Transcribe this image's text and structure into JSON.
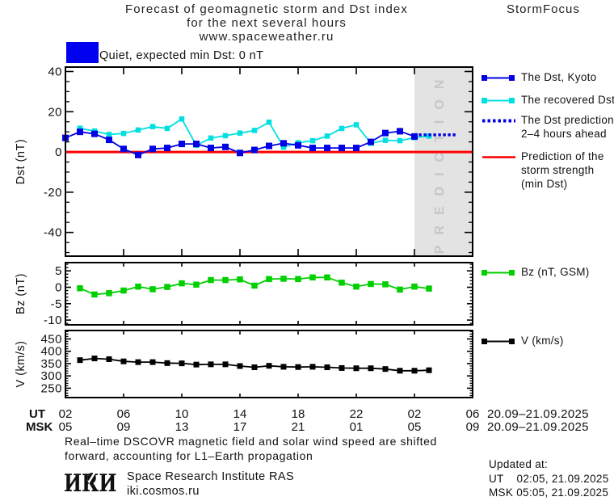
{
  "header": {
    "title_line1": "Forecast of geomagnetic storm and Dst index",
    "title_line2": "for the next several hours",
    "title_line3": "www.spaceweather.ru",
    "brand": "StormFocus"
  },
  "status": {
    "swatch_color": "#0000f0",
    "label": "Quiet, expected min Dst: 0 nT"
  },
  "xaxis": {
    "row1_label": "UT",
    "row2_label": "MSK",
    "hours": [
      2,
      6,
      10,
      14,
      18,
      22,
      26,
      30
    ],
    "row1_ticks": [
      "02",
      "06",
      "10",
      "14",
      "18",
      "22",
      "02",
      "06"
    ],
    "row2_ticks": [
      "05",
      "09",
      "13",
      "17",
      "21",
      "01",
      "05",
      "09"
    ],
    "row1_date": "20.09–21.09.2025",
    "row2_date": "20.09–21.09.2025"
  },
  "chart_data": [
    {
      "type": "line",
      "ylabel": "Dst (nT)",
      "yticks": [
        40,
        20,
        0,
        -20,
        -40
      ],
      "yminor_step": 5,
      "ylim": [
        -51.8,
        42.2
      ],
      "xlim_hours": [
        2,
        30
      ],
      "prediction_band": {
        "start_hour": 26,
        "end_hour": 30,
        "fill": "#e3e3e3",
        "label": "PREDICTION",
        "label_color": "#c6c6c6"
      },
      "series": [
        {
          "name": "storm-strength-prediction",
          "legend": "Prediction of the storm strength (min Dst)",
          "color": "#ff0000",
          "style": "solid",
          "marker": "none",
          "x": [
            2,
            30
          ],
          "values": [
            0,
            0
          ]
        },
        {
          "name": "recovered-dst",
          "legend": "The recovered Dst",
          "color": "#00e0e0",
          "style": "solid",
          "marker": "square",
          "x": [
            3,
            4,
            5,
            6,
            7,
            8,
            9,
            10,
            11,
            12,
            13,
            14,
            15,
            16,
            17,
            18,
            19,
            20,
            21,
            22,
            23,
            24,
            25,
            26,
            27
          ],
          "values": [
            11.8,
            10.4,
            8.7,
            9.2,
            10.9,
            12.6,
            11.7,
            16.4,
            3.3,
            6.9,
            8.1,
            9.4,
            10.7,
            14.8,
            2.4,
            4.6,
            5.6,
            7.9,
            11.7,
            13.5,
            4.3,
            5.8,
            5.6,
            7.1,
            7.9
          ]
        },
        {
          "name": "dst-kyoto",
          "legend": "The Dst, Kyoto",
          "color": "#0000e6",
          "style": "solid",
          "marker": "square",
          "x": [
            2,
            3,
            4,
            5,
            6,
            7,
            8,
            9,
            10,
            11,
            12,
            13,
            14,
            15,
            16,
            17,
            18,
            19,
            20,
            21,
            22,
            23,
            24,
            25,
            26
          ],
          "values": [
            7,
            10,
            9,
            6,
            1.5,
            -1.5,
            1.5,
            2,
            4,
            4,
            2,
            2.5,
            -0.5,
            1,
            3,
            4.3,
            3.3,
            2,
            2,
            2,
            2,
            5,
            9.4,
            10.3,
            7.7
          ]
        },
        {
          "name": "dst-prediction",
          "legend": "The Dst prediction 2–4 hours ahead",
          "color": "#0000e6",
          "style": "dotted",
          "marker": "none",
          "x": [
            26.3,
            28.9
          ],
          "values": [
            8.5,
            8.5
          ]
        }
      ]
    },
    {
      "type": "line",
      "ylabel": "Bz (nT)",
      "yticks": [
        5,
        0,
        -5,
        -10
      ],
      "yminor_step": 1,
      "ylim": [
        -11.45,
        7.51
      ],
      "series": [
        {
          "name": "bz-gsm",
          "legend": "Bz (nT, GSM)",
          "color": "#00d000",
          "style": "solid",
          "marker": "square",
          "x": [
            3,
            4,
            5,
            6,
            7,
            8,
            9,
            10,
            11,
            12,
            13,
            14,
            15,
            16,
            17,
            18,
            19,
            20,
            21,
            22,
            23,
            24,
            25,
            26,
            27
          ],
          "values": [
            -0.3,
            -2.2,
            -1.8,
            -1.0,
            0.2,
            -0.6,
            0.1,
            1.2,
            0.8,
            2.2,
            2.2,
            2.4,
            0.5,
            2.5,
            2.6,
            2.5,
            3.0,
            3.0,
            1.4,
            0.2,
            1.0,
            0.9,
            -0.7,
            0.2,
            -0.4
          ]
        }
      ]
    },
    {
      "type": "line",
      "ylabel": "V (km/s)",
      "yticks": [
        450,
        400,
        350,
        300,
        250
      ],
      "yminor_step": 10,
      "ylim": [
        212,
        484.4
      ],
      "series": [
        {
          "name": "solar-wind-speed",
          "legend": "V (km/s)",
          "color": "#000000",
          "style": "solid",
          "marker": "square",
          "x": [
            3,
            4,
            5,
            6,
            7,
            8,
            9,
            10,
            11,
            12,
            13,
            14,
            15,
            16,
            17,
            18,
            19,
            20,
            21,
            22,
            23,
            24,
            25,
            26,
            27
          ],
          "values": [
            364,
            371,
            368,
            359,
            356,
            356,
            352,
            351,
            346,
            347,
            347,
            340,
            335,
            341,
            337,
            336,
            337,
            335,
            332,
            331,
            331,
            328,
            321,
            321,
            323
          ]
        }
      ]
    }
  ],
  "legend": {
    "dst_kyoto": "The Dst, Kyoto",
    "recovered": "The recovered Dst",
    "prediction_line1": "The Dst prediction",
    "prediction_line2": "2–4 hours ahead",
    "storm_line1": "Prediction of the",
    "storm_line2": "storm strength",
    "storm_line3": "(min Dst)",
    "bz": "Bz (nT, GSM)",
    "v": "V (km/s)"
  },
  "footer": {
    "note_line1": "Real–time DSCOVR magnetic field and solar wind speed are shifted",
    "note_line2": "forward, accounting for L1–Earth propagation",
    "logo_text": "ИКИ",
    "institute": "Space Research Institute RAS",
    "website": "iki.cosmos.ru",
    "updated_label": "Updated at:",
    "updated_ut": "UT    02:05, 21.09.2025",
    "updated_msk": "MSK 05:05, 21.09.2025"
  }
}
